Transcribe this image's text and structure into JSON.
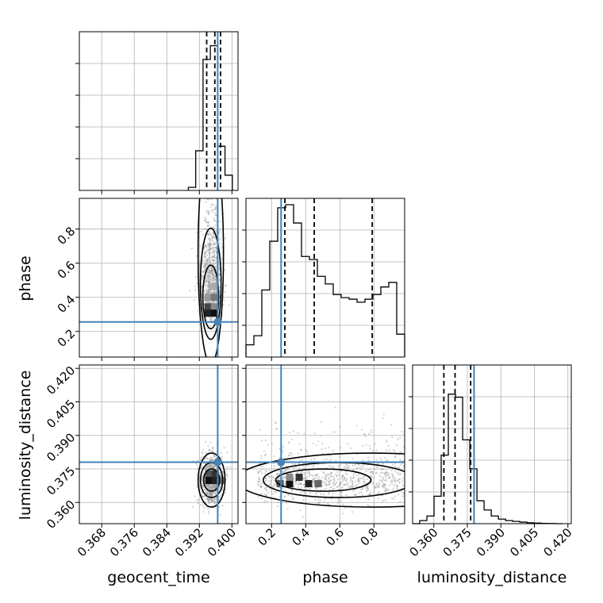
{
  "chart_data": {
    "type": "corner",
    "params": [
      "geocent_time",
      "phase",
      "luminosity_distance"
    ],
    "labels": {
      "x": [
        "geocent_time",
        "phase",
        "luminosity_distance"
      ],
      "y": [
        "phase",
        "luminosity_distance"
      ]
    },
    "ranges": {
      "geocent_time": [
        0.3625,
        0.4015
      ],
      "phase": [
        0.05,
        0.98
      ],
      "luminosity_distance": [
        0.3505,
        0.4215
      ]
    },
    "ticks": {
      "geocent_time": [
        "0.368",
        "0.376",
        "0.384",
        "0.392",
        "0.400"
      ],
      "phase": [
        "0.2",
        "0.4",
        "0.6",
        "0.8"
      ],
      "luminosity_distance": [
        "0.360",
        "0.375",
        "0.390",
        "0.405",
        "0.420"
      ]
    },
    "truths": {
      "geocent_time": 0.3965,
      "phase": 0.256,
      "luminosity_distance": 0.378
    },
    "quantiles": {
      "geocent_time": [
        0.3938,
        0.3958,
        0.3972
      ],
      "phase": [
        0.278,
        0.45,
        0.79
      ],
      "luminosity_distance": [
        0.3645,
        0.3695,
        0.3765
      ]
    },
    "histograms": {
      "geocent_time": {
        "edges": [
          0.3893,
          0.3911,
          0.3929,
          0.3947,
          0.3965,
          0.3983,
          0.4001
        ],
        "counts": [
          0.02,
          0.26,
          0.86,
          0.95,
          0.29,
          0.1
        ]
      },
      "phase": {
        "edges": [
          0.05,
          0.0965,
          0.143,
          0.1895,
          0.236,
          0.2825,
          0.329,
          0.3755,
          0.422,
          0.4685,
          0.515,
          0.5615,
          0.608,
          0.6545,
          0.701,
          0.7475,
          0.794,
          0.8405,
          0.887,
          0.9335,
          0.98
        ],
        "counts": [
          0.08,
          0.14,
          0.44,
          0.76,
          0.98,
          1.0,
          0.88,
          0.66,
          0.64,
          0.53,
          0.48,
          0.41,
          0.39,
          0.38,
          0.36,
          0.38,
          0.41,
          0.46,
          0.49,
          0.15
        ]
      },
      "luminosity_distance": {
        "edges": [
          0.3505,
          0.3537,
          0.3569,
          0.3601,
          0.3633,
          0.3665,
          0.3697,
          0.3729,
          0.3761,
          0.3793,
          0.3825,
          0.3857,
          0.3889,
          0.3921,
          0.3953,
          0.3985,
          0.4017,
          0.4049,
          0.4081,
          0.4113,
          0.4145,
          0.4177
        ],
        "counts": [
          0.0,
          0.02,
          0.05,
          0.18,
          0.45,
          0.85,
          0.83,
          0.55,
          0.36,
          0.15,
          0.09,
          0.05,
          0.03,
          0.02,
          0.015,
          0.01,
          0.006,
          0.004,
          0.002,
          0.001,
          0.0
        ]
      }
    },
    "posterior_peaks": {
      "phase_vs_geocent_time": {
        "x": 0.3948,
        "y": 0.3
      },
      "luminosity_distance_vs_geocent_time": {
        "x": 0.395,
        "y": 0.37
      },
      "luminosity_distance_vs_phase": {
        "x": 0.35,
        "y": 0.37
      }
    },
    "grid": true,
    "colors": {
      "truth": "#4682b4",
      "hist": "#000000",
      "scatter": "#808080"
    }
  }
}
